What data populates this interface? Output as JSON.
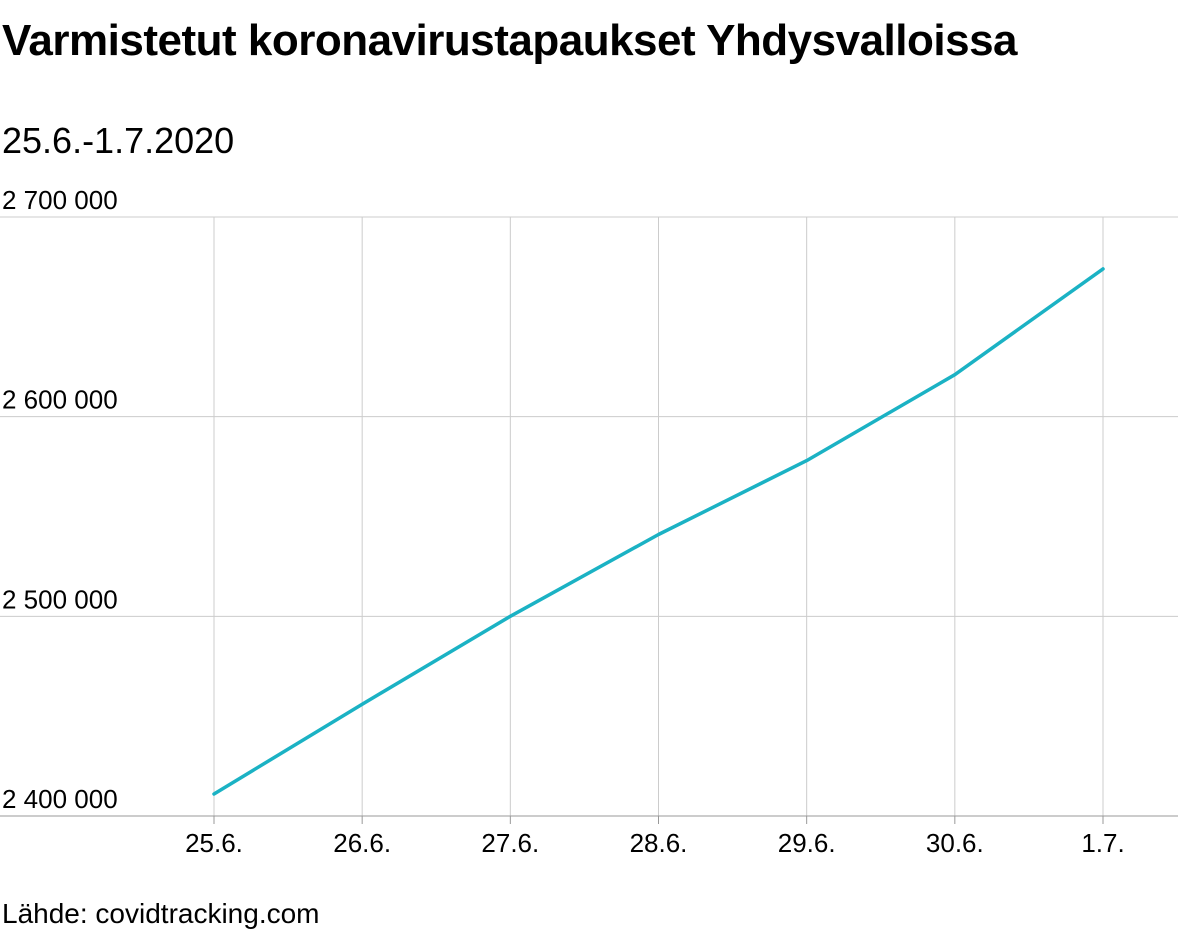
{
  "chart_data": {
    "type": "line",
    "title": "Varmistetut koronavirustapaukset Yhdysvalloissa",
    "subtitle": "25.6.-1.7.2020",
    "xlabel": "",
    "ylabel": "",
    "categories": [
      "25.6.",
      "26.6.",
      "27.6.",
      "28.6.",
      "29.6.",
      "30.6.",
      "1.7."
    ],
    "series": [
      {
        "values": [
          2411000,
          2456000,
          2500000,
          2541000,
          2578000,
          2621000,
          2674000
        ]
      }
    ],
    "ylim": [
      2400000,
      2700000
    ],
    "yticks": [
      2400000,
      2500000,
      2600000,
      2700000
    ],
    "ytick_labels": [
      "2 400 000",
      "2 500 000",
      "2 600 000",
      "2 700 000"
    ],
    "grid": true,
    "line_color": "#1bb2c4",
    "source": "Lähde: covidtracking.com"
  }
}
